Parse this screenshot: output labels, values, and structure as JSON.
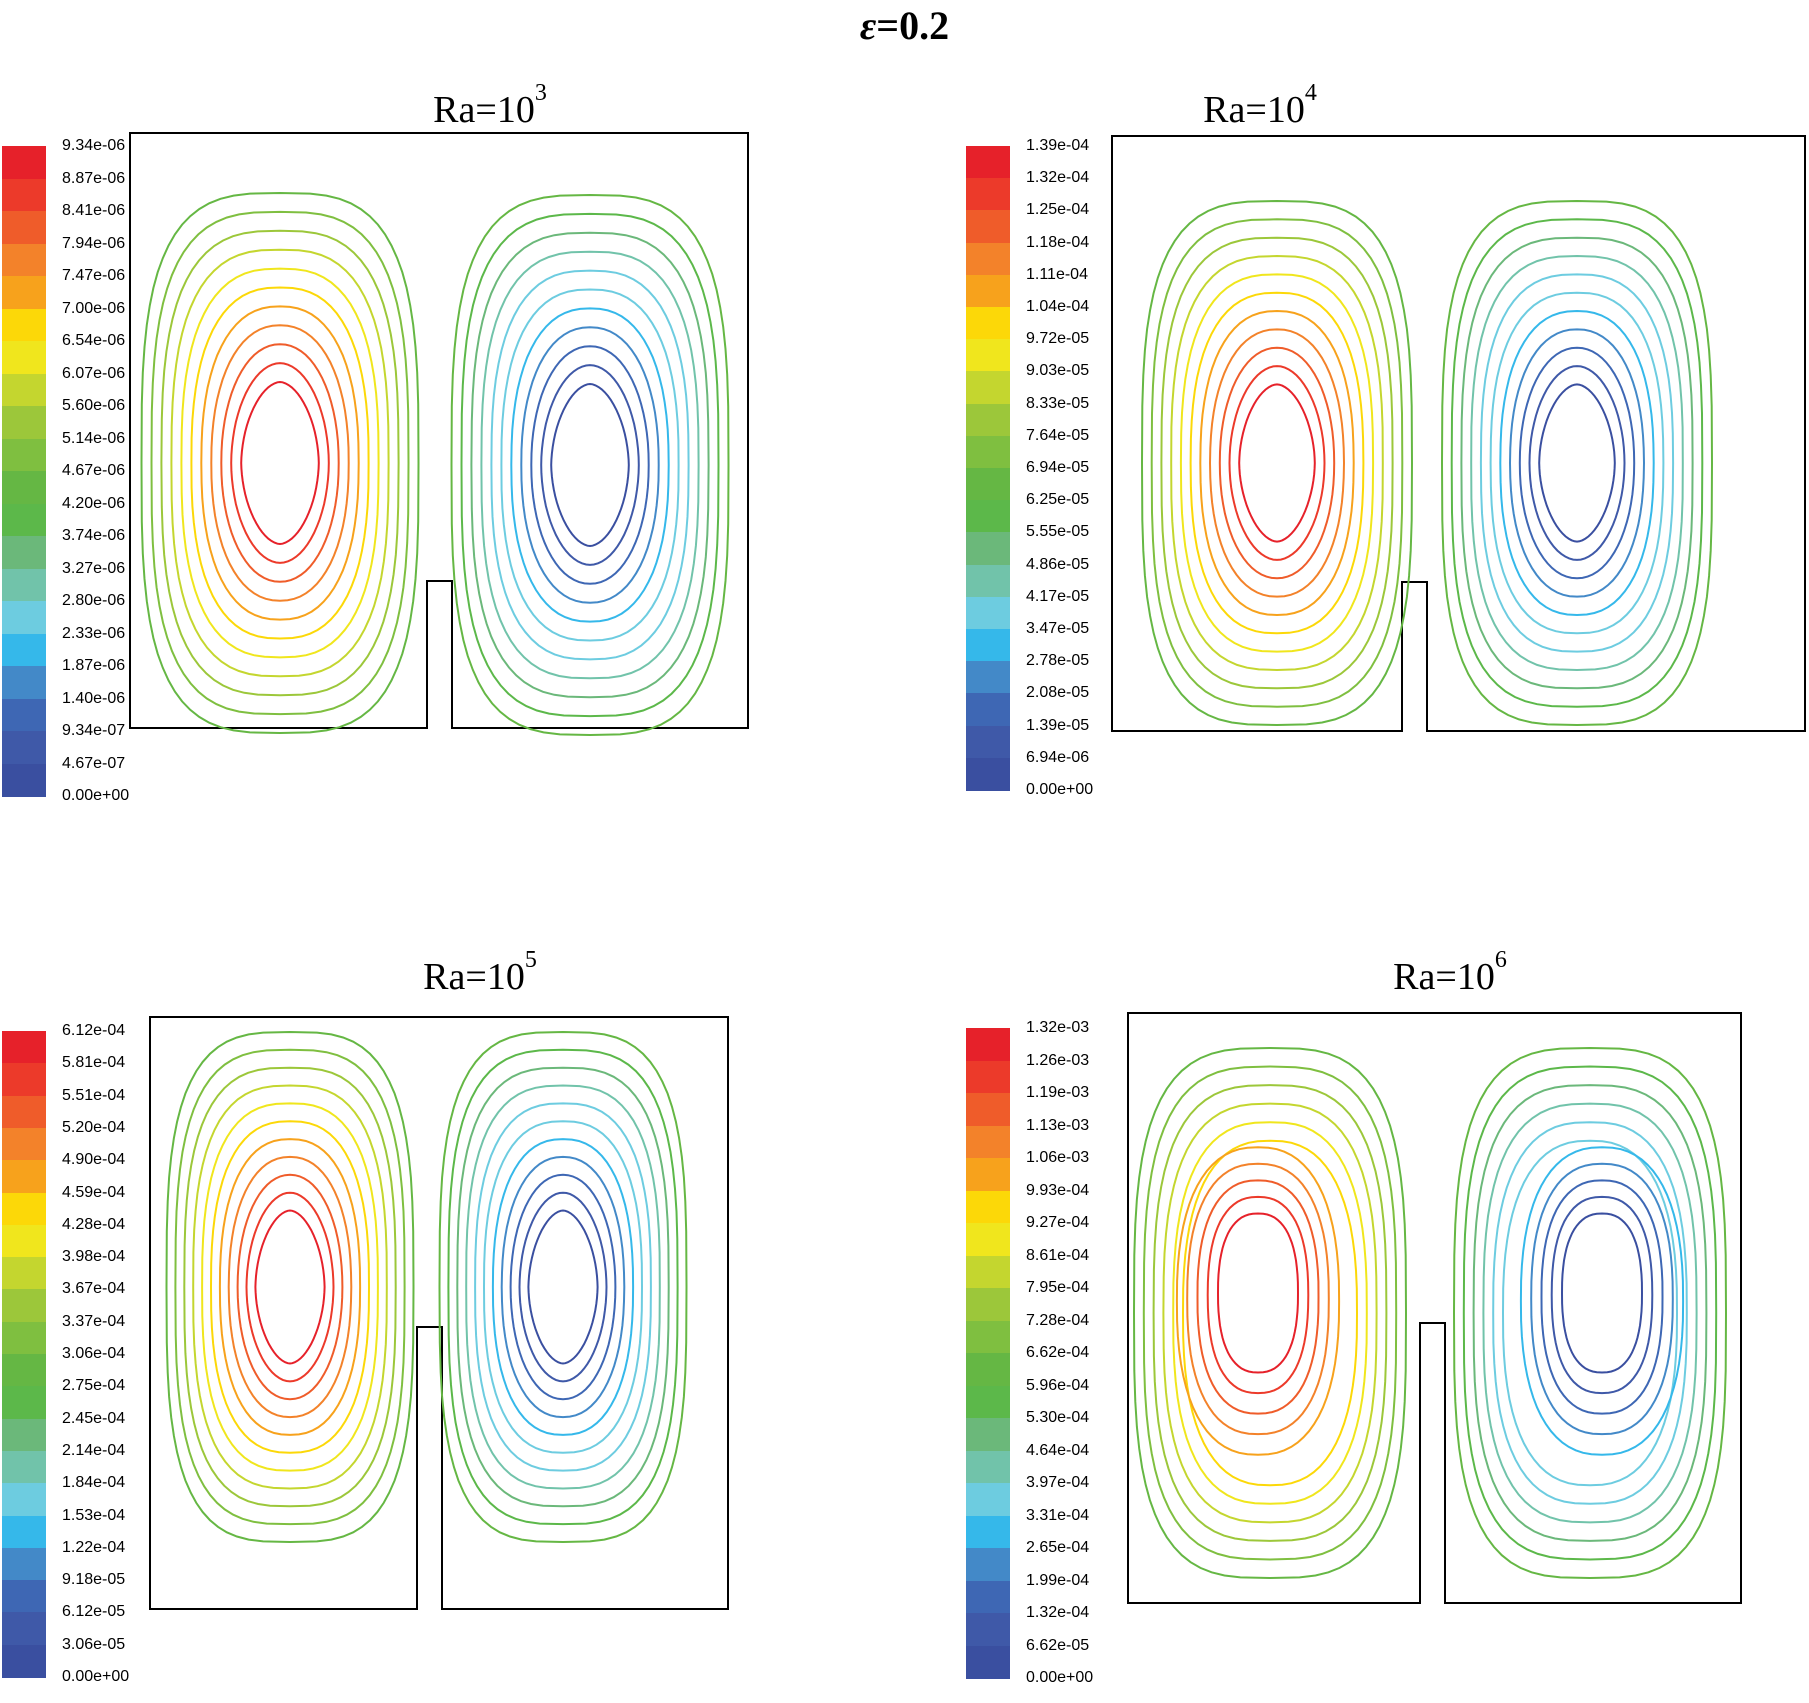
{
  "figure": {
    "title_symbol": "ε",
    "title_value": "=0.2"
  },
  "colors": {
    "scale": [
      "#3a4fa0",
      "#3f59a8",
      "#3e67b4",
      "#4389c8",
      "#35b8ea",
      "#6dcce0",
      "#71c3aa",
      "#6bb87a",
      "#5cb84a",
      "#65b744",
      "#7fbf40",
      "#9cc73a",
      "#c4d62f",
      "#f0e61d",
      "#fcd808",
      "#f7a21c",
      "#f3822a",
      "#ef5c2a",
      "#ec3a2a",
      "#e6212a"
    ],
    "frame": "#000000"
  },
  "chart_data": [
    {
      "type": "contour",
      "title_base": "Ra=10",
      "title_exp": "3",
      "xlim": [
        0,
        1
      ],
      "ylim": [
        0,
        1
      ],
      "legend_labels": [
        "9.34e-06",
        "8.87e-06",
        "8.41e-06",
        "7.94e-06",
        "7.47e-06",
        "7.00e-06",
        "6.54e-06",
        "6.07e-06",
        "5.60e-06",
        "5.14e-06",
        "4.67e-06",
        "4.20e-06",
        "3.74e-06",
        "3.27e-06",
        "2.80e-06",
        "2.33e-06",
        "1.87e-06",
        "1.40e-06",
        "9.34e-07",
        "4.67e-07",
        "0.00e+00"
      ],
      "vortices": [
        {
          "cx": 0.26,
          "cy": 0.52,
          "rx": 0.36,
          "ry": 0.45,
          "shape": "oval",
          "sense": "positive"
        },
        {
          "cx": 0.75,
          "cy": 0.52,
          "rx": 0.36,
          "ry": 0.45,
          "shape": "oval",
          "sense": "negative"
        }
      ]
    },
    {
      "type": "contour",
      "title_base": "Ra=10",
      "title_exp": "4",
      "xlim": [
        0,
        1
      ],
      "ylim": [
        0,
        1
      ],
      "legend_labels": [
        "1.39e-04",
        "1.32e-04",
        "1.25e-04",
        "1.18e-04",
        "1.11e-04",
        "1.04e-04",
        "9.72e-05",
        "9.03e-05",
        "8.33e-05",
        "7.64e-05",
        "6.94e-05",
        "6.25e-05",
        "5.55e-05",
        "4.86e-05",
        "4.17e-05",
        "3.47e-05",
        "2.78e-05",
        "2.08e-05",
        "1.39e-05",
        "6.94e-06",
        "0.00e+00"
      ],
      "vortices": [
        {
          "cx": 0.27,
          "cy": 0.55,
          "rx": 0.36,
          "ry": 0.44,
          "shape": "oval",
          "sense": "positive"
        },
        {
          "cx": 0.73,
          "cy": 0.55,
          "rx": 0.36,
          "ry": 0.44,
          "shape": "oval",
          "sense": "negative"
        }
      ]
    },
    {
      "type": "contour",
      "title_base": "Ra=10",
      "title_exp": "5",
      "xlim": [
        0,
        1
      ],
      "ylim": [
        0,
        1
      ],
      "legend_labels": [
        "6.12e-04",
        "5.81e-04",
        "5.51e-04",
        "5.20e-04",
        "4.90e-04",
        "4.59e-04",
        "4.28e-04",
        "3.98e-04",
        "3.67e-04",
        "3.37e-04",
        "3.06e-04",
        "2.75e-04",
        "2.45e-04",
        "2.14e-04",
        "1.84e-04",
        "1.53e-04",
        "1.22e-04",
        "9.18e-05",
        "6.12e-05",
        "3.06e-05",
        "0.00e+00"
      ],
      "vortices": [
        {
          "cx": 0.27,
          "cy": 0.5,
          "rx": 0.38,
          "ry": 0.45,
          "shape": "oval",
          "sense": "positive"
        },
        {
          "cx": 0.73,
          "cy": 0.5,
          "rx": 0.38,
          "ry": 0.45,
          "shape": "oval",
          "sense": "negative"
        }
      ]
    },
    {
      "type": "contour",
      "title_base": "Ra=10",
      "title_exp": "6",
      "xlim": [
        0,
        1
      ],
      "ylim": [
        0,
        1
      ],
      "legend_labels": [
        "1.32e-03",
        "1.26e-03",
        "1.19e-03",
        "1.13e-03",
        "1.06e-03",
        "9.93e-04",
        "9.27e-04",
        "8.61e-04",
        "7.95e-04",
        "7.28e-04",
        "6.62e-04",
        "5.96e-04",
        "5.30e-04",
        "4.64e-04",
        "3.97e-04",
        "3.31e-04",
        "2.65e-04",
        "1.99e-04",
        "1.32e-04",
        "6.62e-05",
        "0.00e+00"
      ],
      "vortices": [
        {
          "cx": 0.26,
          "cy": 0.5,
          "rx": 0.43,
          "ry": 0.47,
          "shape": "figure-nine",
          "sense": "positive"
        },
        {
          "cx": 0.74,
          "cy": 0.5,
          "rx": 0.43,
          "ry": 0.47,
          "shape": "figure-nine",
          "sense": "negative"
        }
      ]
    }
  ]
}
